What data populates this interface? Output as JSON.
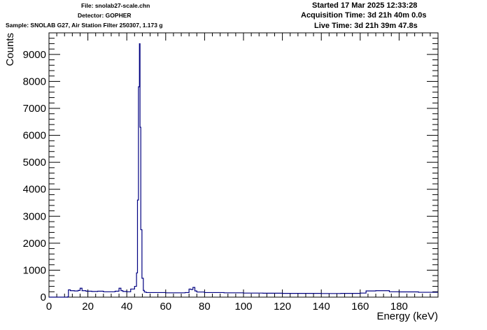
{
  "header": {
    "file": "File: snolab27-scale.chn",
    "detector": "Detector: GOPHER",
    "sample": "Sample: SNOLAB G27, Air Station Filter 250307, 1.173 g",
    "started": "Started 17 Mar 2025 12:33:28",
    "acquisition": "Acquisition Time: 3d 21h 40m 0.0s",
    "live": "Live Time: 3d 21h 39m 47.8s"
  },
  "chart_data": {
    "type": "line",
    "xlabel": "Energy (keV)",
    "ylabel": "Counts",
    "xlim": [
      0,
      200
    ],
    "ylim": [
      0,
      9800
    ],
    "xticks": [
      0,
      20,
      40,
      60,
      80,
      100,
      120,
      140,
      160,
      180
    ],
    "yticks": [
      0,
      1000,
      2000,
      3000,
      4000,
      5000,
      6000,
      7000,
      8000,
      9000
    ],
    "line_color": "#000080",
    "series": [
      {
        "x": [
          0,
          5,
          9.5,
          10,
          11,
          13,
          15,
          16,
          17,
          19,
          22,
          25,
          28,
          31,
          34,
          36,
          37,
          38,
          40,
          42,
          44,
          45,
          45.5,
          46,
          46.5,
          46.8,
          47.2,
          47.8,
          48.5,
          49,
          50,
          55,
          60,
          65,
          70,
          72,
          73,
          74,
          75,
          76,
          80,
          90,
          100,
          110,
          120,
          130,
          140,
          150,
          160,
          163,
          168,
          175,
          180,
          190,
          200
        ],
        "y": [
          0,
          0,
          10,
          270,
          240,
          230,
          250,
          330,
          240,
          220,
          210,
          220,
          200,
          200,
          220,
          330,
          240,
          210,
          200,
          300,
          400,
          900,
          3600,
          7800,
          9400,
          6300,
          2500,
          700,
          250,
          190,
          170,
          170,
          160,
          160,
          170,
          300,
          280,
          360,
          230,
          190,
          170,
          160,
          150,
          145,
          140,
          140,
          135,
          140,
          150,
          230,
          240,
          200,
          195,
          180,
          180
        ]
      }
    ]
  }
}
